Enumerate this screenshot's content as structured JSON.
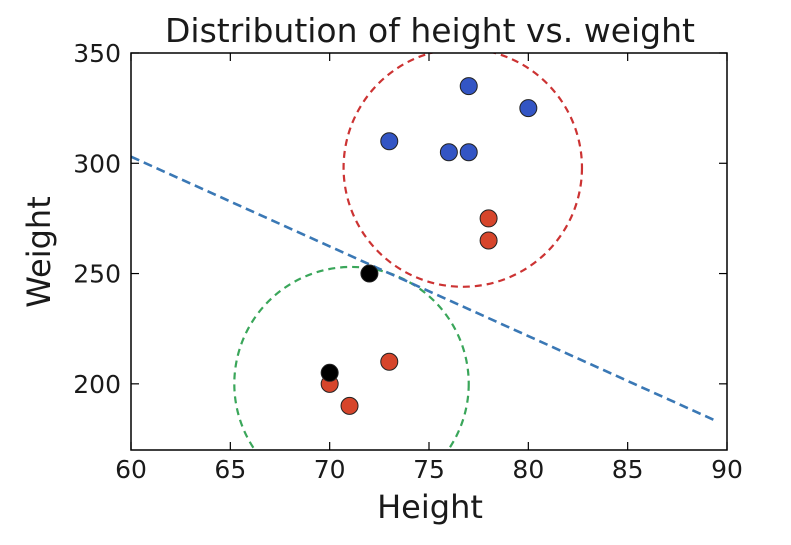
{
  "colors": {
    "blue_points": "#3355c4",
    "red_points": "#d6452b",
    "black_points": "#000000",
    "regression_line": "#3a78b5",
    "red_circle": "#cc3333",
    "green_circle": "#3aa65a",
    "axes": "#000000"
  },
  "chart_data": {
    "type": "scatter",
    "title": "Distribution of height vs. weight",
    "xlabel": "Height",
    "ylabel": "Weight",
    "xlim": [
      60,
      90
    ],
    "ylim": [
      170,
      350
    ],
    "xticks": [
      60,
      65,
      70,
      75,
      80,
      85,
      90
    ],
    "yticks": [
      200,
      250,
      300,
      350
    ],
    "grid": false,
    "series": [
      {
        "color_key": "blue_points",
        "points": [
          [
            73,
            310
          ],
          [
            76,
            305
          ],
          [
            77,
            305
          ],
          [
            77,
            335
          ],
          [
            80,
            325
          ]
        ]
      },
      {
        "color_key": "red_points",
        "points": [
          [
            70,
            200
          ],
          [
            71,
            190
          ],
          [
            73,
            210
          ],
          [
            78,
            275
          ],
          [
            78,
            265
          ]
        ]
      },
      {
        "color_key": "black_points",
        "points": [
          [
            70,
            205
          ],
          [
            72,
            250
          ]
        ]
      }
    ],
    "line": {
      "style": "dashed",
      "color_key": "regression_line",
      "points": [
        [
          60,
          303
        ],
        [
          89.5,
          183
        ]
      ]
    },
    "circles": [
      {
        "style": "dashed",
        "color_key": "red_circle",
        "center": [
          76.7,
          298
        ],
        "radius_x": 6.0,
        "radius_y": 54
      },
      {
        "style": "dashed",
        "color_key": "green_circle",
        "center": [
          71.1,
          200
        ],
        "radius_x": 5.9,
        "radius_y": 53
      }
    ]
  }
}
